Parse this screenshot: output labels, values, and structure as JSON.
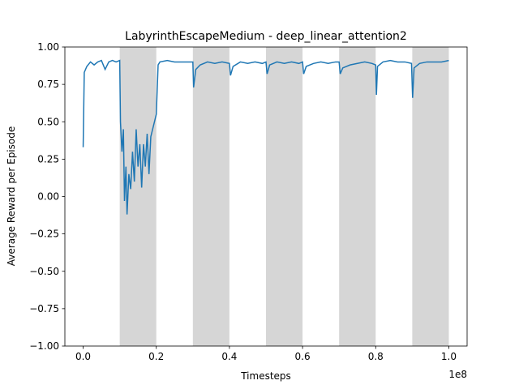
{
  "chart_data": {
    "type": "line",
    "title": "LabyrinthEscapeMedium - deep_linear_attention2",
    "xlabel": "Timesteps",
    "ylabel": "Average Reward per Episode",
    "x_offset_label": "1e8",
    "xlim": [
      -5000000,
      105000000
    ],
    "ylim": [
      -1,
      1
    ],
    "xticks": [
      {
        "value": 0,
        "label": "0.0"
      },
      {
        "value": 20000000,
        "label": "0.2"
      },
      {
        "value": 40000000,
        "label": "0.4"
      },
      {
        "value": 60000000,
        "label": "0.6"
      },
      {
        "value": 80000000,
        "label": "0.8"
      },
      {
        "value": 100000000,
        "label": "1.0"
      }
    ],
    "yticks": [
      {
        "value": -1,
        "label": "−1.00"
      },
      {
        "value": -0.75,
        "label": "−0.75"
      },
      {
        "value": -0.5,
        "label": "−0.50"
      },
      {
        "value": -0.25,
        "label": "−0.25"
      },
      {
        "value": 0,
        "label": "0.00"
      },
      {
        "value": 0.25,
        "label": "0.25"
      },
      {
        "value": 0.5,
        "label": "0.50"
      },
      {
        "value": 0.75,
        "label": "0.75"
      },
      {
        "value": 1,
        "label": "1.00"
      }
    ],
    "shaded_regions": [
      [
        10000000,
        20000000
      ],
      [
        30000000,
        40000000
      ],
      [
        50000000,
        60000000
      ],
      [
        70000000,
        80000000
      ],
      [
        90000000,
        100000000
      ]
    ],
    "shade_color": "#d6d6d6",
    "grid": false,
    "series": [
      {
        "color": "#1f77b4",
        "x": [
          0,
          300000,
          1000000,
          2000000,
          3000000,
          4000000,
          5000000,
          6000000,
          7000000,
          8000000,
          9000000,
          10000000,
          10200000,
          10600000,
          11000000,
          11300000,
          11700000,
          12000000,
          12500000,
          13000000,
          13500000,
          14000000,
          14500000,
          15000000,
          15500000,
          16000000,
          16500000,
          17000000,
          17500000,
          18000000,
          18500000,
          19000000,
          19500000,
          20000000,
          20500000,
          21000000,
          23000000,
          25000000,
          27000000,
          29000000,
          30000000,
          30200000,
          30800000,
          32000000,
          34000000,
          36000000,
          38000000,
          40000000,
          40300000,
          41000000,
          43000000,
          45000000,
          47000000,
          49000000,
          50000000,
          50300000,
          51000000,
          53000000,
          55000000,
          57000000,
          59000000,
          60000000,
          60300000,
          61000000,
          63000000,
          65000000,
          67000000,
          69000000,
          70000000,
          70300000,
          71000000,
          73000000,
          75000000,
          77000000,
          79000000,
          80000000,
          80200000,
          80500000,
          82000000,
          84000000,
          86000000,
          88000000,
          89800000,
          90100000,
          90500000,
          92000000,
          94000000,
          96000000,
          98000000,
          100000000
        ],
        "values": [
          0.33,
          0.83,
          0.87,
          0.9,
          0.88,
          0.9,
          0.91,
          0.85,
          0.9,
          0.91,
          0.9,
          0.91,
          0.5,
          0.3,
          0.45,
          -0.03,
          0.2,
          -0.12,
          0.15,
          0.05,
          0.3,
          0.1,
          0.45,
          0.2,
          0.35,
          0.06,
          0.35,
          0.2,
          0.42,
          0.15,
          0.4,
          0.45,
          0.5,
          0.55,
          0.88,
          0.9,
          0.91,
          0.9,
          0.9,
          0.9,
          0.9,
          0.73,
          0.85,
          0.88,
          0.9,
          0.89,
          0.9,
          0.89,
          0.81,
          0.87,
          0.9,
          0.89,
          0.9,
          0.89,
          0.9,
          0.82,
          0.88,
          0.9,
          0.89,
          0.9,
          0.89,
          0.9,
          0.82,
          0.87,
          0.89,
          0.9,
          0.89,
          0.9,
          0.9,
          0.82,
          0.86,
          0.88,
          0.89,
          0.9,
          0.89,
          0.88,
          0.68,
          0.87,
          0.9,
          0.91,
          0.9,
          0.9,
          0.89,
          0.66,
          0.86,
          0.89,
          0.9,
          0.9,
          0.9,
          0.91
        ]
      }
    ]
  }
}
